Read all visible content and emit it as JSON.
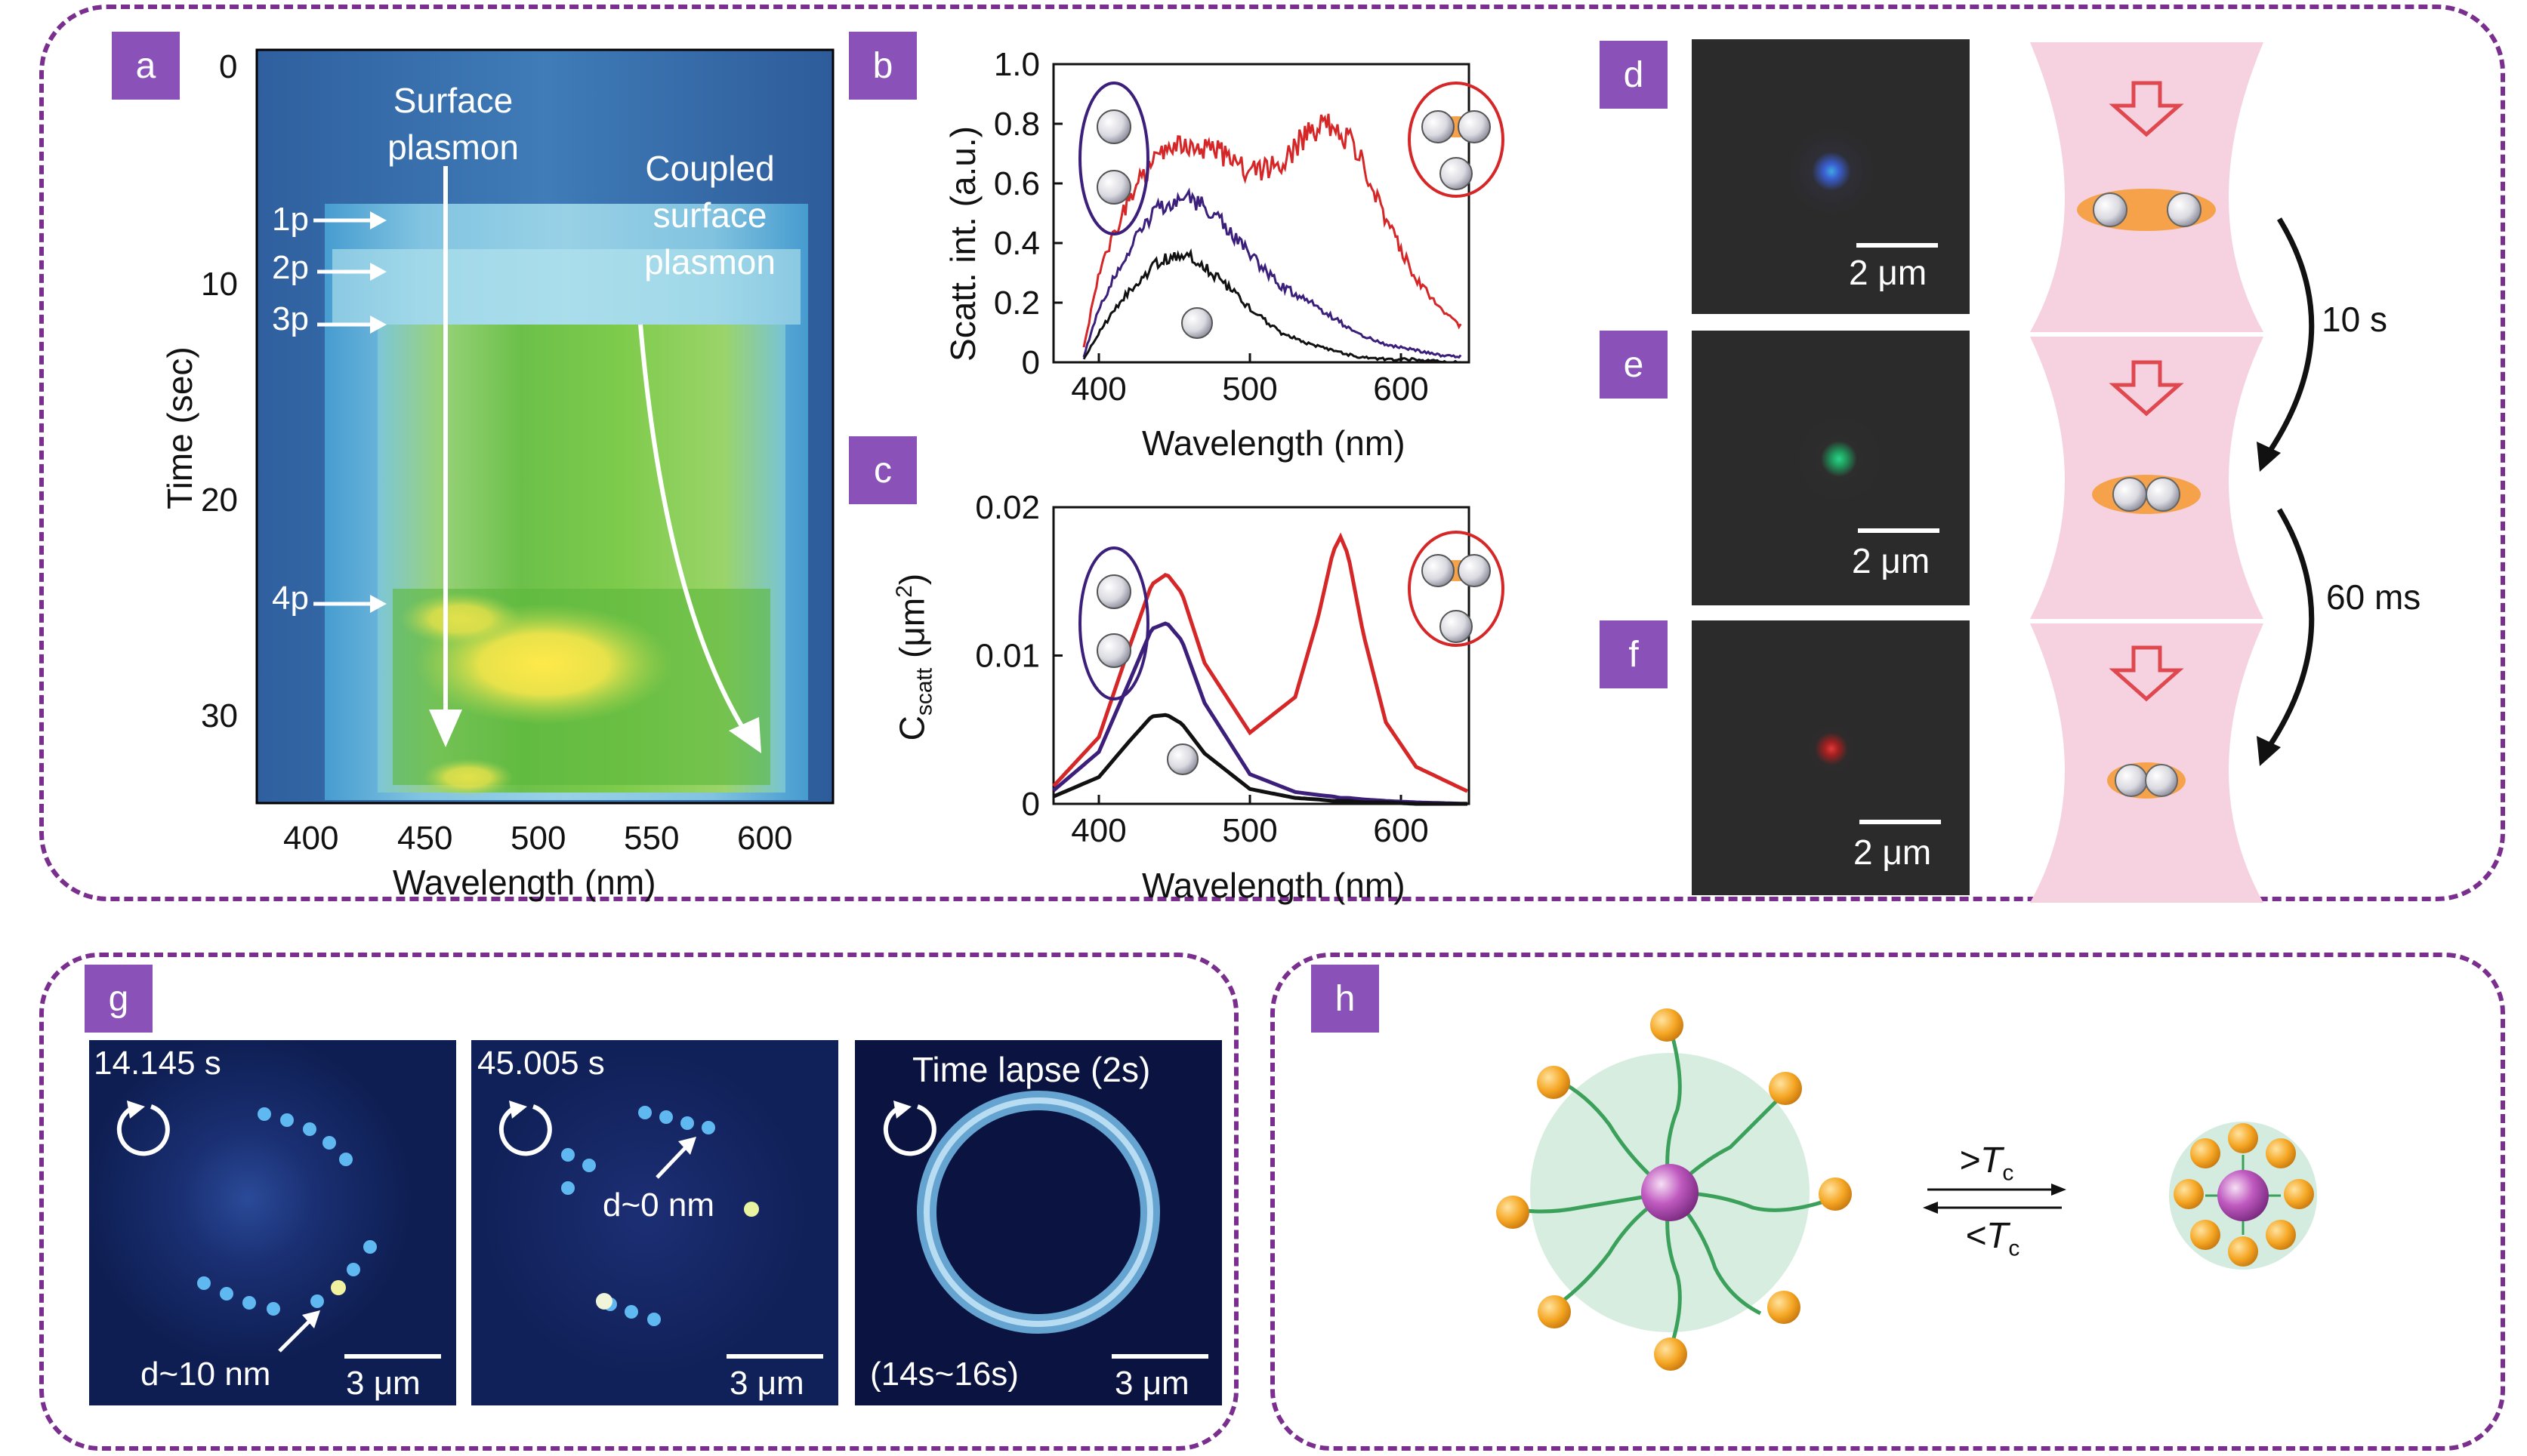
{
  "panel_labels": [
    "a",
    "b",
    "c",
    "d",
    "e",
    "f",
    "g",
    "h"
  ],
  "panel_a": {
    "ylabel": "Time (sec)",
    "xlabel": "Wavelength (nm)",
    "yticks": [
      "0",
      "10",
      "20",
      "30"
    ],
    "xticks": [
      "400",
      "450",
      "500",
      "550",
      "600"
    ],
    "arrow1_label": [
      "Surface",
      "plasmon"
    ],
    "arrow2_label": [
      "Coupled",
      "surface",
      "plasmon"
    ],
    "particle_markers": [
      "1p",
      "2p",
      "3p",
      "4p"
    ]
  },
  "panel_b": {
    "ylabel": "Scatt. int. (a.u.)",
    "xlabel": "Wavelength (nm)",
    "yticks": [
      "0",
      "0.2",
      "0.4",
      "0.6",
      "0.8",
      "1.0"
    ],
    "xticks": [
      "400",
      "500",
      "600"
    ]
  },
  "panel_c": {
    "ylabel_main": "C",
    "ylabel_sub": "scatt",
    "ylabel_unit": " (μm",
    "ylabel_sup": "2",
    "ylabel_close": ")",
    "xlabel": "Wavelength (nm)",
    "yticks": [
      "0",
      "0.01",
      "0.02"
    ],
    "xticks": [
      "400",
      "500",
      "600"
    ]
  },
  "panel_def": {
    "scale": "2 μm",
    "times": [
      "10 s",
      "60 ms"
    ]
  },
  "panel_g": {
    "frames": [
      {
        "time": "14.145 s",
        "annotation": "d~10 nm",
        "scale": "3 μm"
      },
      {
        "time": "45.005 s",
        "annotation": "d~0 nm",
        "scale": "3 μm"
      },
      {
        "time": "Time lapse (2s)",
        "annotation": "(14s~16s)",
        "scale": "3 μm"
      }
    ]
  },
  "panel_h": {
    "forward": ">T",
    "backward": "<T",
    "subscript": "c"
  },
  "colors": {
    "frame": "#7a2f8f",
    "label_bg": "#8a52b8",
    "red": "#d62728",
    "purple": "#3b1f7a",
    "black": "#111111",
    "pink": "#f6d1df",
    "orange": "#f5a623"
  },
  "chart_data": [
    {
      "type": "heatmap",
      "panel": "a",
      "xlabel": "Wavelength (nm)",
      "ylabel": "Time (sec)",
      "xlim": [
        375,
        630
      ],
      "ylim": [
        0,
        34
      ],
      "events": [
        {
          "label": "1p",
          "time": 7
        },
        {
          "label": "2p",
          "time": 9.5
        },
        {
          "label": "3p",
          "time": 12
        },
        {
          "label": "4p",
          "time": 25
        }
      ]
    },
    {
      "type": "line",
      "panel": "b",
      "xlabel": "Wavelength (nm)",
      "ylabel": "Scatt. int. (a.u.)",
      "xlim": [
        370,
        645
      ],
      "ylim": [
        0,
        1.0
      ],
      "x": [
        390,
        400,
        420,
        440,
        460,
        480,
        500,
        520,
        540,
        555,
        570,
        590,
        610,
        630,
        640
      ],
      "series": [
        {
          "color": "red",
          "values": [
            0.05,
            0.3,
            0.55,
            0.7,
            0.74,
            0.7,
            0.64,
            0.66,
            0.78,
            0.8,
            0.72,
            0.48,
            0.28,
            0.16,
            0.12
          ]
        },
        {
          "color": "purple",
          "values": [
            0.02,
            0.18,
            0.38,
            0.52,
            0.56,
            0.48,
            0.36,
            0.26,
            0.2,
            0.15,
            0.1,
            0.06,
            0.04,
            0.02,
            0.02
          ]
        },
        {
          "color": "black",
          "values": [
            0.01,
            0.1,
            0.24,
            0.34,
            0.36,
            0.28,
            0.18,
            0.1,
            0.06,
            0.04,
            0.02,
            0.01,
            0.01,
            0.0,
            0.0
          ]
        }
      ]
    },
    {
      "type": "line",
      "panel": "c",
      "xlabel": "Wavelength (nm)",
      "ylabel": "C scatt (μm2)",
      "xlim": [
        370,
        645
      ],
      "ylim": [
        0,
        0.02
      ],
      "x": [
        370,
        400,
        420,
        435,
        445,
        455,
        470,
        500,
        530,
        545,
        555,
        560,
        565,
        575,
        590,
        610,
        645
      ],
      "series": [
        {
          "color": "red",
          "values": [
            0.0012,
            0.0045,
            0.0105,
            0.0148,
            0.0155,
            0.0142,
            0.0095,
            0.0048,
            0.0072,
            0.0125,
            0.017,
            0.018,
            0.0168,
            0.0115,
            0.0055,
            0.0025,
            0.0008
          ]
        },
        {
          "color": "purple",
          "values": [
            0.0009,
            0.0035,
            0.0082,
            0.0118,
            0.0122,
            0.011,
            0.0068,
            0.002,
            0.0008,
            0.0006,
            0.0005,
            0.0004,
            0.0004,
            0.0003,
            0.0002,
            0.0001,
            0.0
          ]
        },
        {
          "color": "black",
          "values": [
            0.0005,
            0.0018,
            0.0042,
            0.0059,
            0.006,
            0.0054,
            0.0034,
            0.001,
            0.0004,
            0.0003,
            0.0002,
            0.0002,
            0.0002,
            0.0001,
            0.0001,
            0.0,
            0.0
          ]
        }
      ]
    }
  ]
}
